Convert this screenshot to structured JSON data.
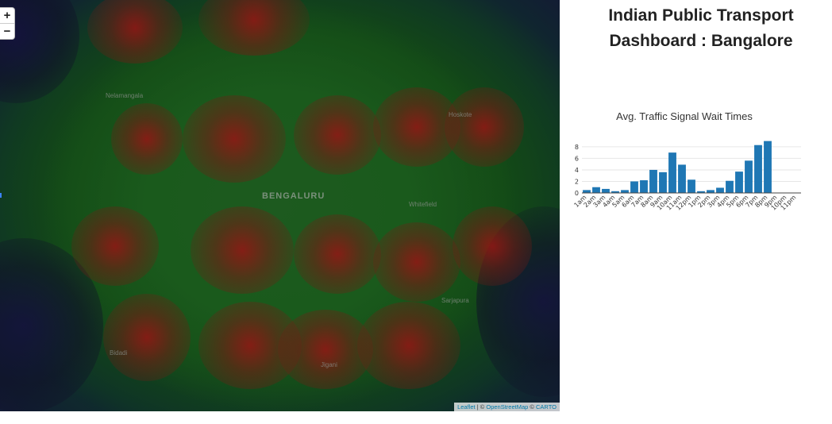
{
  "dashboard": {
    "title_line1": "Indian Public Transport",
    "title_line2": "Dashboard : Bangalore"
  },
  "map": {
    "zoom_in_label": "+",
    "zoom_out_label": "−",
    "attribution_leaflet": "Leaflet",
    "attribution_sep1": " | © ",
    "attribution_osm": "OpenStreetMap",
    "attribution_sep2": " © ",
    "attribution_carto": "CARTO",
    "place_labels": {
      "bengaluru": "BENGALURU",
      "nelamangala": "Nelamangala",
      "hoskote": "Hoskote",
      "whitefield": "Whitefield",
      "sarjapura": "Sarjapura",
      "bidadi": "Bidadi",
      "jigani": "Jigani"
    },
    "heat_colors": {
      "low": "#1a5a1c",
      "high": "#8b1a1a",
      "background": "#0d0d12"
    }
  },
  "chart_data": {
    "type": "bar",
    "title": "Avg. Traffic Signal Wait Times",
    "categories": [
      "1am",
      "2am",
      "3am",
      "4am",
      "5am",
      "6am",
      "7am",
      "8am",
      "9am",
      "10am",
      "11am",
      "12pm",
      "1pm",
      "2pm",
      "3pm",
      "4pm",
      "5pm",
      "6pm",
      "7pm",
      "8pm",
      "9pm",
      "10pm",
      "11pm"
    ],
    "values": [
      0.5,
      1.0,
      0.7,
      0.3,
      0.5,
      2.0,
      2.2,
      4.0,
      3.6,
      7.0,
      4.9,
      2.3,
      0.3,
      0.5,
      0.9,
      2.1,
      3.7,
      5.6,
      8.3,
      9.0,
      0,
      0,
      0
    ],
    "yticks": [
      0,
      2,
      4,
      6,
      8
    ],
    "ylim": [
      0,
      9.5
    ],
    "bar_color": "#1f77b4",
    "grid": true
  }
}
